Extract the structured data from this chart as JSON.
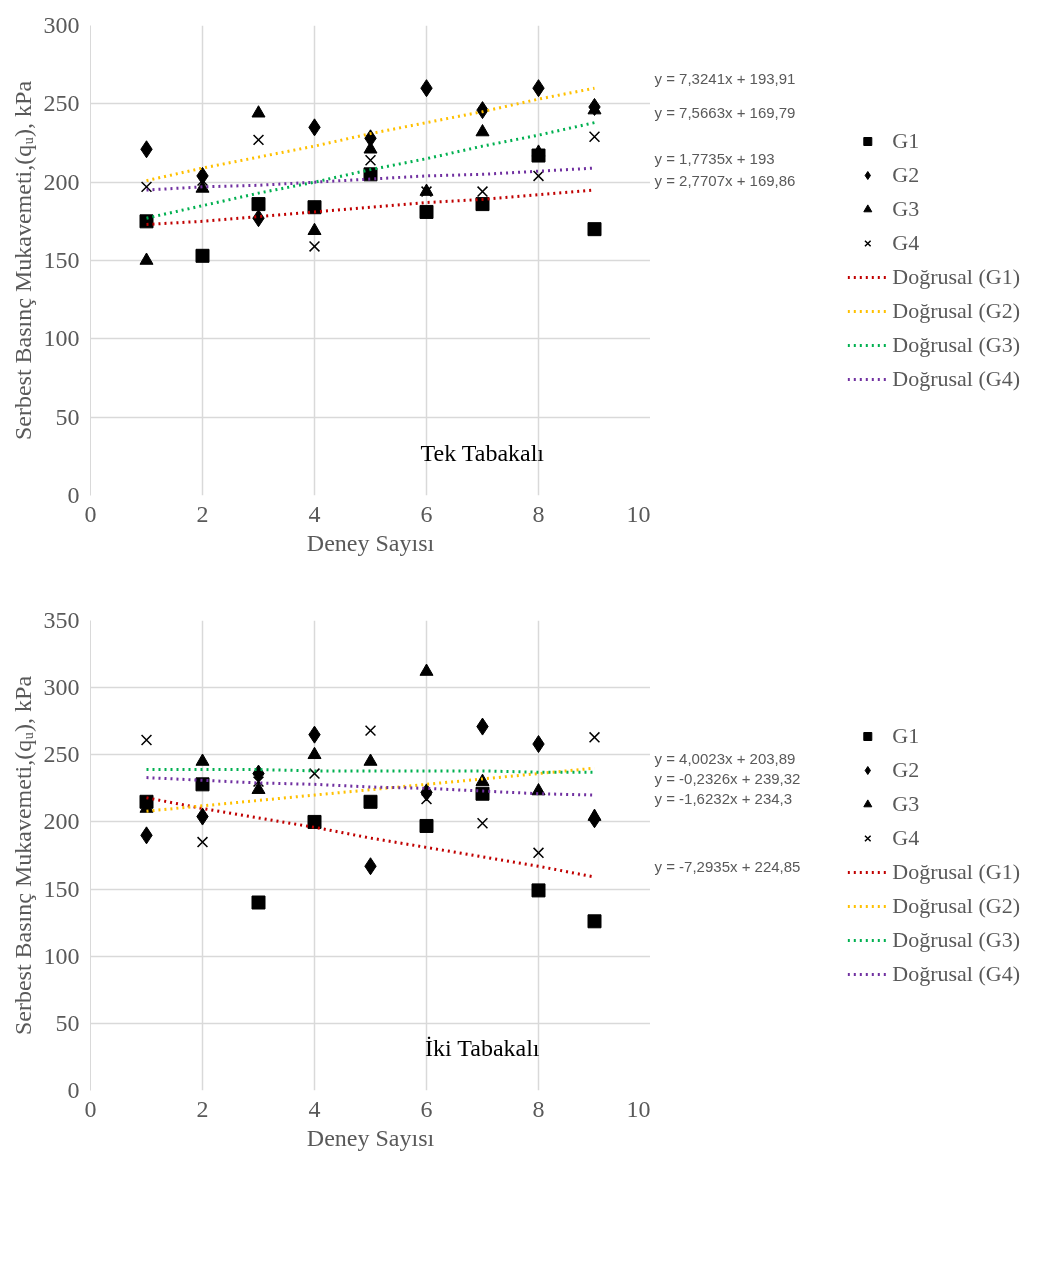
{
  "chart_data": [
    {
      "type": "scatter",
      "xlabel": "Deney Sayısı",
      "ylabel": "Serbest Basınç Mukavemeti,(qᵤ), kPa",
      "xlim": [
        0,
        10
      ],
      "xticks": [
        0,
        2,
        4,
        6,
        8,
        10
      ],
      "ylim": [
        0,
        300
      ],
      "yticks": [
        0,
        50,
        100,
        150,
        200,
        250,
        300
      ],
      "grid": true,
      "legend": "right",
      "x": [
        1,
        2,
        3,
        4,
        5,
        6,
        7,
        8,
        9
      ],
      "series": [
        {
          "name": "G1",
          "color": "#000000",
          "marker": "square",
          "values": [
            175,
            153,
            186,
            184,
            205,
            181,
            186,
            217,
            170
          ]
        },
        {
          "name": "G2",
          "color": "#000000",
          "marker": "diamond",
          "values": [
            221,
            204,
            177,
            235,
            228,
            260,
            246,
            260,
            248
          ]
        },
        {
          "name": "G3",
          "color": "#000000",
          "marker": "triangle",
          "values": [
            150,
            196,
            244,
            169,
            221,
            194,
            232,
            219,
            246
          ]
        },
        {
          "name": "G4",
          "color": "#000000",
          "marker": "cross",
          "values": [
            197,
            201,
            227,
            159,
            214,
            194,
            194,
            204,
            229
          ]
        },
        {
          "name": "Doğrusal (G1)",
          "type": "line",
          "line_style": "dotted",
          "marker": "none",
          "color": "#c00000",
          "values": [
            173,
            175,
            178,
            181,
            184,
            187,
            189,
            192,
            195
          ]
        },
        {
          "name": "Doğrusal (G2)",
          "type": "line",
          "line_style": "dotted",
          "marker": "none",
          "color": "#ffc000",
          "values": [
            201,
            209,
            216,
            223,
            231,
            238,
            245,
            253,
            260
          ]
        },
        {
          "name": "Doğrusal (G3)",
          "type": "line",
          "line_style": "dotted",
          "marker": "none",
          "color": "#00b050",
          "values": [
            177,
            185,
            193,
            200,
            208,
            215,
            223,
            230,
            238
          ]
        },
        {
          "name": "Doğrusal (G4)",
          "type": "line",
          "line_style": "dotted",
          "marker": "none",
          "color": "#7030a0",
          "values": [
            195,
            197,
            198,
            200,
            202,
            204,
            205,
            207,
            209
          ]
        }
      ],
      "annotations": [
        "y = 2,7707x + 169,86",
        "y = 7,3241x + 193,91",
        "y = 7,5663x + 169,79",
        "y = 1,7735x + 193",
        "Tek Tabakalı"
      ]
    },
    {
      "type": "scatter",
      "xlabel": "Deney Sayısı",
      "ylabel": "Serbest Basınç Mukavemeti,(qᵤ), kPa",
      "xlim": [
        0,
        10
      ],
      "xticks": [
        0,
        2,
        4,
        6,
        8,
        10
      ],
      "ylim": [
        0,
        350
      ],
      "yticks": [
        0,
        50,
        100,
        150,
        200,
        250,
        300,
        350
      ],
      "grid": true,
      "legend": "right",
      "x": [
        1,
        2,
        3,
        4,
        5,
        6,
        7,
        8,
        9
      ],
      "series": [
        {
          "name": "G1",
          "color": "#000000",
          "marker": "square",
          "values": [
            215,
            228,
            140,
            200,
            215,
            197,
            221,
            149,
            126
          ]
        },
        {
          "name": "G2",
          "color": "#000000",
          "marker": "diamond",
          "values": [
            190,
            204,
            236,
            265,
            167,
            222,
            271,
            258,
            202
          ]
        },
        {
          "name": "G3",
          "color": "#000000",
          "marker": "triangle",
          "values": [
            210,
            245,
            224,
            250,
            245,
            312,
            230,
            223,
            204
          ]
        },
        {
          "name": "G4",
          "color": "#000000",
          "marker": "cross",
          "values": [
            261,
            185,
            230,
            236,
            268,
            217,
            199,
            177,
            263
          ]
        },
        {
          "name": "Doğrusal (G1)",
          "type": "line",
          "line_style": "dotted",
          "marker": "none",
          "color": "#c00000",
          "values": [
            218,
            210,
            203,
            196,
            188,
            181,
            174,
            167,
            159
          ]
        },
        {
          "name": "Doğrusal (G2)",
          "type": "line",
          "line_style": "dotted",
          "marker": "none",
          "color": "#ffc000",
          "values": [
            208,
            212,
            216,
            220,
            224,
            228,
            232,
            236,
            240
          ]
        },
        {
          "name": "Doğrusal (G3)",
          "type": "line",
          "line_style": "dotted",
          "marker": "none",
          "color": "#00b050",
          "values": [
            239,
            239,
            239,
            238,
            238,
            238,
            238,
            237,
            237
          ]
        },
        {
          "name": "Doğrusal (G4)",
          "type": "line",
          "line_style": "dotted",
          "marker": "none",
          "color": "#7030a0",
          "values": [
            233,
            231,
            229,
            228,
            226,
            225,
            223,
            221,
            220
          ]
        }
      ],
      "annotations": [
        "y = -7,2935x + 224,85",
        "y = 4,0023x + 203,89",
        "y = -0,2326x + 239,32",
        "y = -1,6232x + 234,3",
        "İki Tabakalı"
      ]
    }
  ]
}
